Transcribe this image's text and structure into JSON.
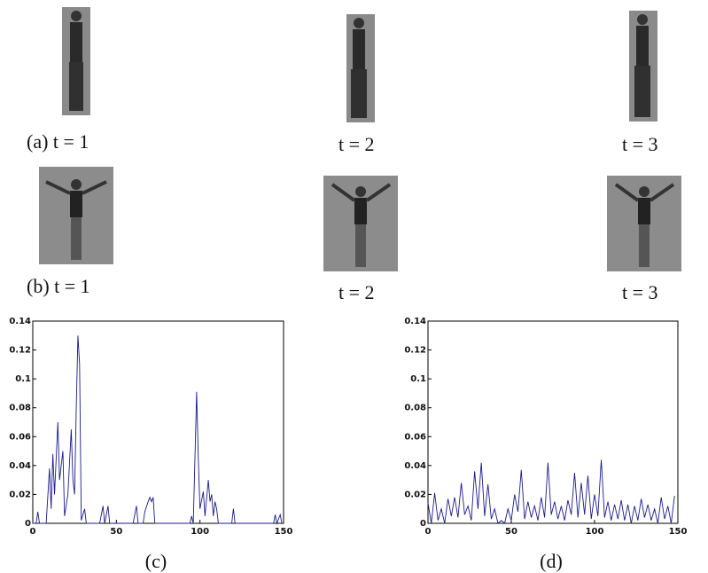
{
  "captions": {
    "a1": "(a) t = 1",
    "a2": "t = 2",
    "a3": "t = 3",
    "b1": "(b) t = 1",
    "b2": "t = 2",
    "b3": "t = 3",
    "c": "(c)",
    "d": "(d)"
  },
  "chart_data": [
    {
      "type": "line",
      "x": [
        0,
        2,
        3,
        4,
        8,
        10,
        11,
        12,
        13,
        15,
        16,
        18,
        19,
        21,
        23,
        24,
        25,
        26,
        27,
        28,
        29,
        31,
        32,
        40,
        42,
        43,
        45,
        46,
        60,
        62,
        63,
        66,
        67,
        69,
        70,
        71,
        72,
        73,
        94,
        95,
        96,
        98,
        99,
        100,
        102,
        103,
        105,
        106,
        107,
        108,
        109,
        110,
        111,
        119,
        120,
        121,
        144,
        145,
        146,
        148,
        149
      ],
      "series": [
        {
          "color": "#1a1a8c",
          "values": [
            0,
            0,
            0.008,
            0,
            0,
            0.038,
            0.01,
            0.048,
            0.02,
            0.07,
            0.03,
            0.05,
            0.005,
            0.02,
            0.065,
            0.03,
            0.02,
            0.08,
            0.13,
            0.11,
            0.002,
            0.01,
            0,
            0,
            0.012,
            0,
            0.012,
            0,
            0,
            0.012,
            0,
            0,
            0.008,
            0.015,
            0.018,
            0.015,
            0.018,
            0,
            0,
            0.005,
            0,
            0.091,
            0.045,
            0.01,
            0.022,
            0.005,
            0.03,
            0.015,
            0.02,
            0.005,
            0.015,
            0.01,
            0,
            0,
            0.01,
            0,
            0,
            0.006,
            0,
            0.006,
            0
          ]
        }
      ],
      "xlim": [
        0,
        150
      ],
      "xticks": [
        0,
        50,
        100,
        150
      ],
      "ylim": [
        0,
        0.14
      ],
      "yticks": [
        0,
        0.02,
        0.04,
        0.06,
        0.08,
        0.1,
        0.12,
        0.14
      ]
    },
    {
      "type": "line",
      "x": [
        0,
        2,
        4,
        6,
        8,
        10,
        12,
        14,
        16,
        18,
        20,
        22,
        24,
        26,
        28,
        30,
        32,
        34,
        36,
        38,
        40,
        42,
        44,
        46,
        48,
        50,
        52,
        54,
        56,
        58,
        60,
        62,
        64,
        66,
        68,
        70,
        72,
        74,
        76,
        78,
        80,
        82,
        84,
        86,
        88,
        90,
        92,
        94,
        96,
        98,
        100,
        102,
        104,
        106,
        108,
        110,
        112,
        114,
        116,
        118,
        120,
        122,
        124,
        126,
        128,
        130,
        132,
        134,
        136,
        138,
        140,
        142,
        144,
        146,
        148
      ],
      "series": [
        {
          "color": "#1a1a8c",
          "values": [
            0.014,
            0,
            0.021,
            0.002,
            0.01,
            0,
            0.017,
            0.005,
            0.018,
            0.004,
            0.028,
            0.006,
            0.012,
            0.002,
            0.036,
            0.01,
            0.042,
            0.005,
            0.027,
            0.003,
            0.01,
            0,
            0.002,
            0,
            0.01,
            0.002,
            0.02,
            0.008,
            0.037,
            0.003,
            0.015,
            0.004,
            0.012,
            0.002,
            0.018,
            0.004,
            0.042,
            0.006,
            0.015,
            0.003,
            0.012,
            0.002,
            0.016,
            0.006,
            0.035,
            0.004,
            0.028,
            0.006,
            0.033,
            0.003,
            0.02,
            0.005,
            0.044,
            0.004,
            0.015,
            0.002,
            0.013,
            0.003,
            0.016,
            0.002,
            0.013,
            0,
            0.012,
            0.002,
            0.017,
            0.004,
            0.013,
            0.002,
            0.01,
            0,
            0.018,
            0.003,
            0.012,
            0,
            0.019
          ]
        }
      ],
      "xlim": [
        0,
        150
      ],
      "xticks": [
        0,
        50,
        100,
        150
      ],
      "ylim": [
        0,
        0.14
      ],
      "yticks": [
        0,
        0.02,
        0.04,
        0.06,
        0.08,
        0.1,
        0.12,
        0.14
      ]
    }
  ]
}
